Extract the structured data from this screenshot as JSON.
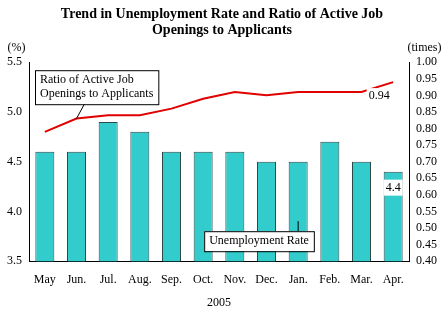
{
  "chart_data": {
    "type": "bar",
    "title": "Trend in Unemployment Rate and Ratio of Active Job Openings to Applicants",
    "xlabel": "2005",
    "ylabel": "(%)",
    "y2label": "(times)",
    "categories": [
      "May",
      "Jun.",
      "Jul.",
      "Aug.",
      "Sep.",
      "Oct.",
      "Nov.",
      "Dec.",
      "Jan.",
      "Feb.",
      "Mar.",
      "Apr."
    ],
    "series": [
      {
        "name": "Unemployment Rate",
        "type": "bar",
        "color": "#33cccc",
        "values": [
          4.6,
          4.6,
          4.9,
          4.8,
          4.6,
          4.6,
          4.6,
          4.5,
          4.5,
          4.7,
          4.5,
          4.4
        ],
        "value_labels": [
          null,
          null,
          null,
          null,
          null,
          null,
          null,
          null,
          null,
          null,
          null,
          "4.4"
        ]
      },
      {
        "name": "Ratio of Active Job Openings to Applicants",
        "type": "line",
        "color": "#e00000",
        "axis": "y2",
        "values": [
          0.79,
          0.83,
          0.84,
          0.84,
          0.86,
          0.89,
          0.91,
          0.9,
          0.91,
          0.91,
          0.91,
          0.94
        ],
        "value_labels": [
          null,
          null,
          null,
          null,
          null,
          null,
          null,
          null,
          null,
          null,
          null,
          "0.94"
        ]
      }
    ],
    "ylim": [
      3.5,
      5.5
    ],
    "yticks": [
      3.5,
      {
        "value": 4,
        "label": "4.0"
      },
      4.5,
      {
        "value": 5,
        "label": "5.0"
      },
      5.5
    ],
    "y2lim": [
      0.4,
      1.0
    ],
    "y2ticks": [
      {
        "value": 0.4,
        "label": "0.40"
      },
      0.45,
      {
        "value": 0.5,
        "label": "0.50"
      },
      0.55,
      {
        "value": 0.6,
        "label": "0.60"
      },
      0.65,
      {
        "value": 0.7,
        "label": "0.70"
      },
      0.75,
      {
        "value": 0.8,
        "label": "0.80"
      },
      0.85,
      {
        "value": 0.9,
        "label": "0.90"
      },
      0.95,
      {
        "value": 1.0,
        "label": "1.00"
      }
    ],
    "grid": false
  }
}
